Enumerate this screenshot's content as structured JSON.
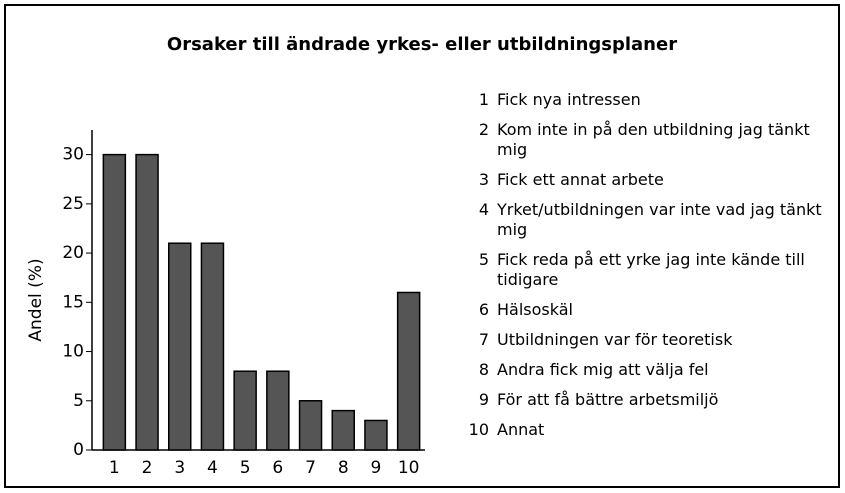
{
  "chart_data": {
    "type": "bar",
    "title": "Orsaker till ändrade yrkes- eller utbildningsplaner",
    "ylabel": "Andel (%)",
    "categories": [
      "1",
      "2",
      "3",
      "4",
      "5",
      "6",
      "7",
      "8",
      "9",
      "10"
    ],
    "values": [
      30,
      30,
      21,
      21,
      8,
      8,
      5,
      4,
      3,
      16
    ],
    "color": "#555555",
    "ylim": [
      0,
      32.5
    ],
    "yticks": [
      0,
      5,
      10,
      15,
      20,
      25,
      30
    ],
    "category_descriptions": [
      "Fick nya intressen",
      "Kom inte in på den utbildning jag tänkt mig",
      "Fick ett annat arbete",
      "Yrket/utbildningen var inte vad jag tänkt mig",
      "Fick reda på ett yrke jag inte kände till tidigare",
      "Hälsoskäl",
      "Utbildningen var för teoretisk",
      "Andra fick mig att välja fel",
      "För att få bättre arbetsmiljö",
      "Annat"
    ]
  }
}
